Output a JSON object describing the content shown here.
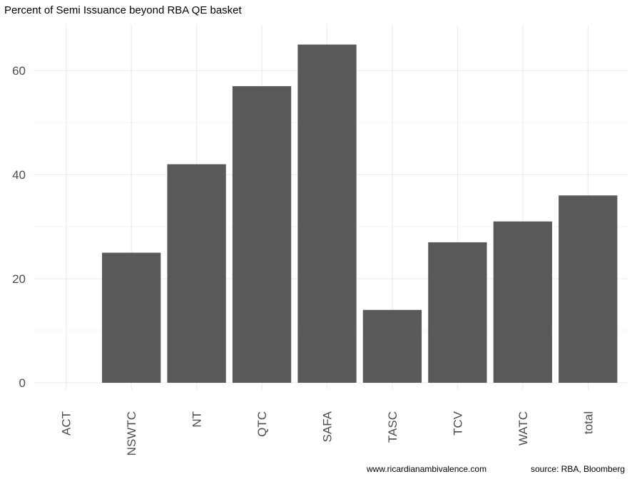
{
  "chart_data": {
    "type": "bar",
    "title": "Percent of Semi Issuance beyond RBA QE basket",
    "xlabel": "",
    "ylabel": "",
    "categories": [
      "ACT",
      "NSWTC",
      "NT",
      "QTC",
      "SAFA",
      "TASC",
      "TCV",
      "WATC",
      "total"
    ],
    "values": [
      0,
      25,
      42,
      57,
      65,
      14,
      27,
      31,
      36
    ],
    "ylim": [
      0,
      68.8
    ],
    "yticks": [
      0,
      20,
      40,
      60
    ],
    "grid": true,
    "bar_color": "#595959",
    "grid_color": "#ebebeb"
  },
  "captions": {
    "website": "www.ricardianambivalence.com",
    "source": "source: RBA, Bloomberg"
  }
}
